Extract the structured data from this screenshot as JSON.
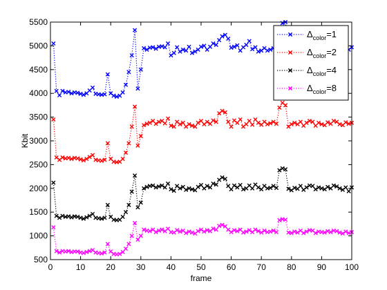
{
  "chart_data": {
    "type": "line",
    "title": "",
    "xlabel": "frame",
    "ylabel": "Kbit",
    "xlim": [
      0,
      100
    ],
    "ylim": [
      500,
      5500
    ],
    "xticks": [
      "0",
      "10",
      "20",
      "30",
      "40",
      "50",
      "60",
      "70",
      "80",
      "90",
      "100"
    ],
    "yticks": [
      "500",
      "1000",
      "1500",
      "2000",
      "2500",
      "3000",
      "3500",
      "4000",
      "4500",
      "5000",
      "5500"
    ],
    "grid": false,
    "legend_position": "top-right",
    "series": [
      {
        "name": "Δcolor=1",
        "legend_main": "Δ",
        "legend_sub": "color",
        "legend_tail": "=1",
        "color": "#0000ff",
        "x": [
          1,
          2,
          3,
          4,
          5,
          6,
          7,
          8,
          9,
          10,
          11,
          12,
          13,
          14,
          15,
          16,
          17,
          18,
          19,
          20,
          21,
          22,
          23,
          24,
          25,
          26,
          27,
          28,
          29,
          30,
          31,
          32,
          33,
          34,
          35,
          36,
          37,
          38,
          39,
          40,
          41,
          42,
          43,
          44,
          45,
          46,
          47,
          48,
          49,
          50,
          51,
          52,
          53,
          54,
          55,
          56,
          57,
          58,
          59,
          60,
          61,
          62,
          63,
          64,
          65,
          66,
          67,
          68,
          69,
          70,
          71,
          72,
          73,
          74,
          75,
          76,
          77,
          78,
          79,
          80,
          81,
          82,
          83,
          84,
          85,
          86,
          87,
          88,
          89,
          90,
          91,
          92,
          93,
          94,
          95,
          96,
          97,
          98,
          99,
          100
        ],
        "y": [
          5050,
          4050,
          3960,
          4050,
          4020,
          4030,
          4000,
          4020,
          4010,
          3990,
          3970,
          4000,
          4060,
          4120,
          3990,
          3980,
          3970,
          3980,
          4400,
          4000,
          3950,
          3930,
          3950,
          4020,
          4180,
          4450,
          4800,
          5330,
          4100,
          4500,
          4950,
          4920,
          4960,
          4970,
          4940,
          4980,
          4990,
          4970,
          5050,
          4800,
          4850,
          4970,
          4880,
          4920,
          4900,
          4980,
          4850,
          4880,
          4920,
          4980,
          5000,
          4920,
          4980,
          5050,
          5020,
          5120,
          5200,
          5230,
          5150,
          4960,
          4980,
          5010,
          4900,
          4970,
          5020,
          5100,
          4930,
          4970,
          4880,
          4900,
          4950,
          4900,
          4920,
          4950,
          5000,
          5220,
          5480,
          5500,
          4880,
          4980,
          4950,
          4900,
          4960,
          4880,
          4930,
          4960,
          4950,
          4850,
          4940,
          4900,
          4870,
          4950,
          4920,
          5000,
          4960,
          4900,
          4890,
          4950,
          4920,
          4970
        ]
      },
      {
        "name": "Δcolor=2",
        "legend_main": "Δ",
        "legend_sub": "color",
        "legend_tail": "=2",
        "color": "#ff0000",
        "x": [
          1,
          2,
          3,
          4,
          5,
          6,
          7,
          8,
          9,
          10,
          11,
          12,
          13,
          14,
          15,
          16,
          17,
          18,
          19,
          20,
          21,
          22,
          23,
          24,
          25,
          26,
          27,
          28,
          29,
          30,
          31,
          32,
          33,
          34,
          35,
          36,
          37,
          38,
          39,
          40,
          41,
          42,
          43,
          44,
          45,
          46,
          47,
          48,
          49,
          50,
          51,
          52,
          53,
          54,
          55,
          56,
          57,
          58,
          59,
          60,
          61,
          62,
          63,
          64,
          65,
          66,
          67,
          68,
          69,
          70,
          71,
          72,
          73,
          74,
          75,
          76,
          77,
          78,
          79,
          80,
          81,
          82,
          83,
          84,
          85,
          86,
          87,
          88,
          89,
          90,
          91,
          92,
          93,
          94,
          95,
          96,
          97,
          98,
          99,
          100
        ],
        "y": [
          3450,
          2650,
          2600,
          2650,
          2630,
          2640,
          2620,
          2640,
          2630,
          2610,
          2590,
          2620,
          2660,
          2700,
          2600,
          2590,
          2580,
          2600,
          2950,
          2620,
          2560,
          2550,
          2560,
          2620,
          2750,
          2950,
          3300,
          3720,
          2900,
          3100,
          3330,
          3360,
          3380,
          3420,
          3360,
          3400,
          3420,
          3370,
          3470,
          3320,
          3300,
          3400,
          3350,
          3380,
          3300,
          3350,
          3320,
          3300,
          3380,
          3420,
          3350,
          3400,
          3360,
          3430,
          3400,
          3580,
          3630,
          3600,
          3400,
          3300,
          3430,
          3380,
          3450,
          3300,
          3350,
          3420,
          3340,
          3450,
          3380,
          3340,
          3400,
          3350,
          3370,
          3400,
          3360,
          3700,
          3800,
          3750,
          3300,
          3350,
          3380,
          3350,
          3400,
          3320,
          3380,
          3420,
          3400,
          3320,
          3380,
          3350,
          3330,
          3390,
          3360,
          3420,
          3400,
          3350,
          3330,
          3390,
          3360,
          3380
        ]
      },
      {
        "name": "Δcolor=4",
        "legend_main": "Δ",
        "legend_sub": "color",
        "legend_tail": "=4",
        "color": "#000000",
        "x": [
          1,
          2,
          3,
          4,
          5,
          6,
          7,
          8,
          9,
          10,
          11,
          12,
          13,
          14,
          15,
          16,
          17,
          18,
          19,
          20,
          21,
          22,
          23,
          24,
          25,
          26,
          27,
          28,
          29,
          30,
          31,
          32,
          33,
          34,
          35,
          36,
          37,
          38,
          39,
          40,
          41,
          42,
          43,
          44,
          45,
          46,
          47,
          48,
          49,
          50,
          51,
          52,
          53,
          54,
          55,
          56,
          57,
          58,
          59,
          60,
          61,
          62,
          63,
          64,
          65,
          66,
          67,
          68,
          69,
          70,
          71,
          72,
          73,
          74,
          75,
          76,
          77,
          78,
          79,
          80,
          81,
          82,
          83,
          84,
          85,
          86,
          87,
          88,
          89,
          90,
          91,
          92,
          93,
          94,
          95,
          96,
          97,
          98,
          99,
          100
        ],
        "y": [
          2120,
          1420,
          1380,
          1420,
          1400,
          1410,
          1390,
          1410,
          1400,
          1380,
          1360,
          1390,
          1420,
          1460,
          1380,
          1370,
          1360,
          1380,
          1650,
          1400,
          1340,
          1330,
          1340,
          1400,
          1500,
          1650,
          1930,
          2270,
          1600,
          1700,
          2000,
          2030,
          2050,
          2060,
          2020,
          2040,
          2060,
          2020,
          2100,
          1980,
          1950,
          2050,
          2000,
          2030,
          1970,
          2000,
          1980,
          1960,
          2030,
          2070,
          2000,
          2050,
          2020,
          2100,
          2080,
          2180,
          2230,
          2200,
          2050,
          1980,
          2060,
          2020,
          2070,
          1980,
          2000,
          2060,
          2000,
          2080,
          2020,
          1980,
          2050,
          2000,
          2010,
          2050,
          2010,
          2380,
          2420,
          2400,
          1990,
          1960,
          2010,
          1990,
          2050,
          1970,
          2020,
          2060,
          2050,
          1980,
          2020,
          2000,
          1980,
          2030,
          2000,
          2060,
          2040,
          2000,
          1970,
          2020,
          1940,
          2020
        ]
      },
      {
        "name": "Δcolor=8",
        "legend_main": "Δ",
        "legend_sub": "color",
        "legend_tail": "=8",
        "color": "#ff00ff",
        "x": [
          1,
          2,
          3,
          4,
          5,
          6,
          7,
          8,
          9,
          10,
          11,
          12,
          13,
          14,
          15,
          16,
          17,
          18,
          19,
          20,
          21,
          22,
          23,
          24,
          25,
          26,
          27,
          28,
          29,
          30,
          31,
          32,
          33,
          34,
          35,
          36,
          37,
          38,
          39,
          40,
          41,
          42,
          43,
          44,
          45,
          46,
          47,
          48,
          49,
          50,
          51,
          52,
          53,
          54,
          55,
          56,
          57,
          58,
          59,
          60,
          61,
          62,
          63,
          64,
          65,
          66,
          67,
          68,
          69,
          70,
          71,
          72,
          73,
          74,
          75,
          76,
          77,
          78,
          79,
          80,
          81,
          82,
          83,
          84,
          85,
          86,
          87,
          88,
          89,
          90,
          91,
          92,
          93,
          94,
          95,
          96,
          97,
          98,
          99,
          100
        ],
        "y": [
          1180,
          680,
          650,
          680,
          670,
          680,
          660,
          670,
          670,
          650,
          640,
          660,
          680,
          700,
          650,
          640,
          630,
          650,
          830,
          670,
          620,
          610,
          620,
          660,
          730,
          830,
          1000,
          1270,
          920,
          1000,
          1130,
          1110,
          1100,
          1130,
          1080,
          1110,
          1130,
          1100,
          1150,
          1080,
          1070,
          1120,
          1090,
          1110,
          1060,
          1090,
          1070,
          1050,
          1100,
          1130,
          1090,
          1120,
          1100,
          1150,
          1130,
          1210,
          1230,
          1200,
          1130,
          1080,
          1120,
          1100,
          1130,
          1070,
          1090,
          1120,
          1080,
          1130,
          1100,
          1070,
          1110,
          1080,
          1090,
          1110,
          1080,
          1330,
          1350,
          1340,
          1070,
          1060,
          1090,
          1070,
          1110,
          1060,
          1090,
          1120,
          1110,
          1060,
          1090,
          1080,
          1070,
          1100,
          1080,
          1110,
          1100,
          1070,
          1050,
          1090,
          1060,
          1080
        ]
      }
    ]
  }
}
